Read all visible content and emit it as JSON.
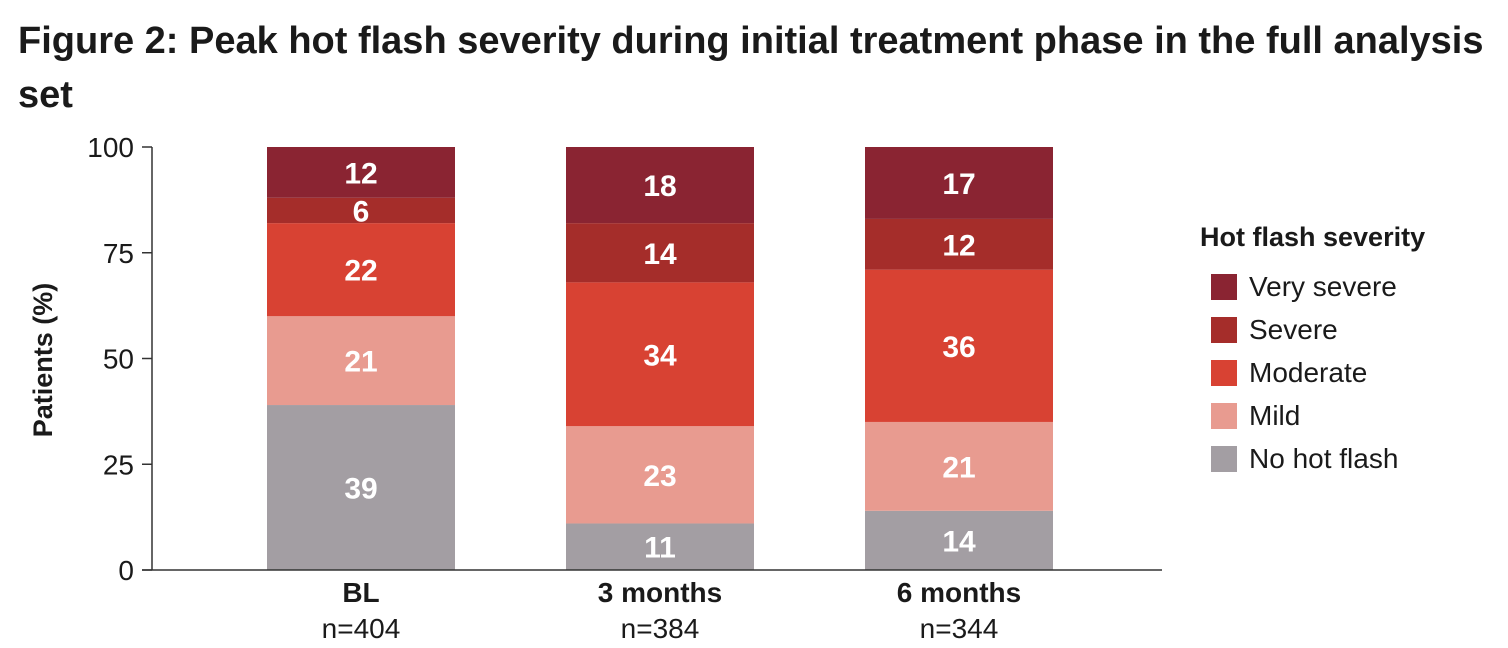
{
  "title": "Figure 2: Peak hot flash severity during initial treatment phase in the full analysis set",
  "chart_data": {
    "type": "bar",
    "stacked": true,
    "title": "Figure 2: Peak hot flash severity during initial treatment phase in the full analysis set",
    "ylabel": "Patients (%)",
    "ylim": [
      0,
      100
    ],
    "yticks": [
      0,
      25,
      50,
      75,
      100
    ],
    "grid": false,
    "legend_position": "right",
    "legend_title": "Hot flash severity",
    "categories": [
      "BL",
      "3 months",
      "6 months"
    ],
    "category_sublabels": [
      "n=404",
      "n=384",
      "n=344"
    ],
    "series": [
      {
        "name": "No hot flash",
        "color": "#a39ea3",
        "values": [
          39,
          11,
          14
        ]
      },
      {
        "name": "Mild",
        "color": "#e89b90",
        "values": [
          21,
          23,
          21
        ]
      },
      {
        "name": "Moderate",
        "color": "#d84233",
        "values": [
          22,
          34,
          36
        ]
      },
      {
        "name": "Severe",
        "color": "#a52d2a",
        "values": [
          6,
          14,
          12
        ]
      },
      {
        "name": "Very severe",
        "color": "#8a2432",
        "values": [
          12,
          18,
          17
        ]
      }
    ]
  },
  "legend": {
    "title": "Hot flash severity",
    "items": [
      {
        "label": "Very severe",
        "color": "#8a2432"
      },
      {
        "label": "Severe",
        "color": "#a52d2a"
      },
      {
        "label": "Moderate",
        "color": "#d84233"
      },
      {
        "label": "Mild",
        "color": "#e89b90"
      },
      {
        "label": "No hot flash",
        "color": "#a39ea3"
      }
    ]
  }
}
